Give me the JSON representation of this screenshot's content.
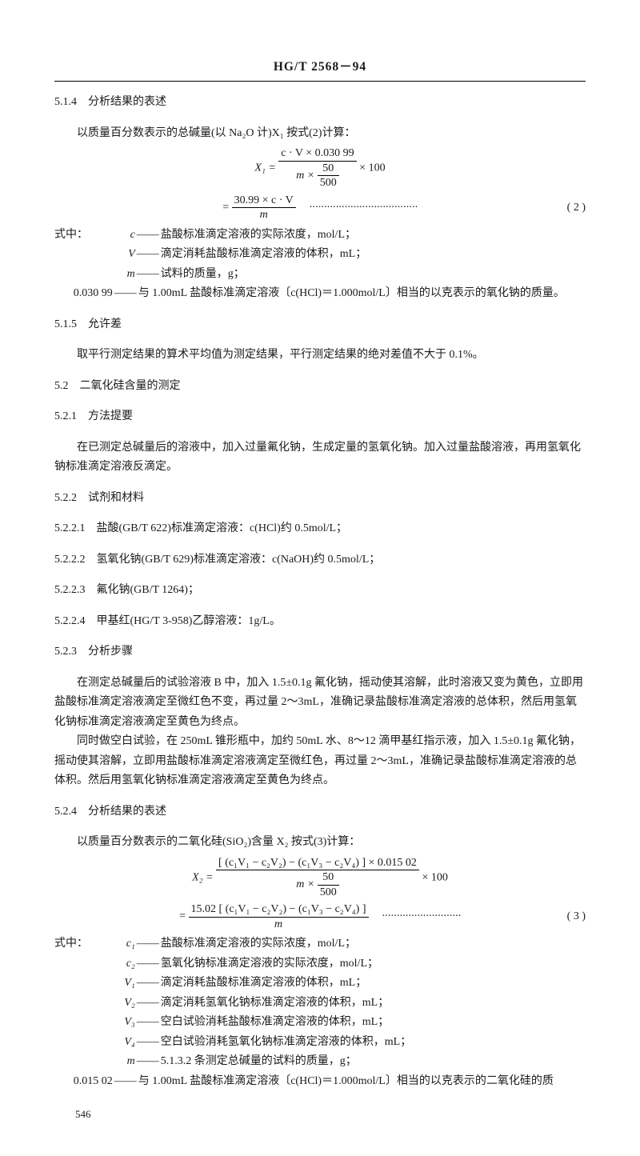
{
  "doc": {
    "standard_id": "HG/T 2568－94",
    "page_number": "546"
  },
  "s514": {
    "head": "5.1.4　分析结果的表述",
    "lead": "以质量百分数表示的总碱量(以 Na₂O 计)X₁ 按式(2)计算：",
    "eq_lhs": "X₁ =",
    "eq_num_top": "c · V × 0.030 99",
    "eq_den_outer_left": "m ×",
    "eq_den_inner_num": "50",
    "eq_den_inner_den": "500",
    "eq_tail": "× 100",
    "eq2_lhs": "=",
    "eq2_num": "30.99 × c · V",
    "eq2_den": "m",
    "eq_label": "( 2 )",
    "where_intro": "式中：",
    "where": [
      {
        "sym": "c",
        "txt": "盐酸标准滴定溶液的实际浓度，mol/L；"
      },
      {
        "sym": "V",
        "txt": "滴定消耗盐酸标准滴定溶液的体积，mL；"
      },
      {
        "sym": "m",
        "txt": "试料的质量，g；"
      }
    ],
    "const_row_sym": "0.030 99",
    "const_row_txt": "与 1.00mL 盐酸标准滴定溶液〔c(HCl)＝1.000mol/L〕相当的以克表示的氧化钠的质量。"
  },
  "s515": {
    "head": "5.1.5　允许差",
    "body": "取平行测定结果的算术平均值为测定结果，平行测定结果的绝对差值不大于 0.1%。"
  },
  "s52": {
    "head": "5.2　二氧化硅含量的测定"
  },
  "s521": {
    "head": "5.2.1　方法提要",
    "body": "在已测定总碱量后的溶液中，加入过量氟化钠，生成定量的氢氧化钠。加入过量盐酸溶液，再用氢氧化钠标准滴定溶液反滴定。"
  },
  "s522": {
    "head": "5.2.2　试剂和材料",
    "items": {
      "a": "5.2.2.1　盐酸(GB/T 622)标准滴定溶液：c(HCl)约 0.5mol/L；",
      "b": "5.2.2.2　氢氧化钠(GB/T 629)标准滴定溶液：c(NaOH)约 0.5mol/L；",
      "c": "5.2.2.3　氟化钠(GB/T 1264)；",
      "d": "5.2.2.4　甲基红(HG/T 3-958)乙醇溶液：1g/L。"
    }
  },
  "s523": {
    "head": "5.2.3　分析步骤",
    "p1": "在测定总碱量后的试验溶液 B 中，加入 1.5±0.1g 氟化钠，摇动使其溶解，此时溶液又变为黄色，立即用盐酸标准滴定溶液滴定至微红色不变，再过量 2～3mL，准确记录盐酸标准滴定溶液的总体积，然后用氢氧化钠标准滴定溶液滴定至黄色为终点。",
    "p2": "同时做空白试验，在 250mL 锥形瓶中，加约 50mL 水、8～12 滴甲基红指示液，加入 1.5±0.1g 氟化钠，摇动使其溶解，立即用盐酸标准滴定溶液滴定至微红色，再过量 2～3mL，准确记录盐酸标准滴定溶液的总体积。然后用氢氧化钠标准滴定溶液滴定至黄色为终点。"
  },
  "s524": {
    "head": "5.2.4　分析结果的表述",
    "lead": "以质量百分数表示的二氧化硅(SiO₂)含量 X₂ 按式(3)计算：",
    "eq_lhs": "X₂ =",
    "eq_num_top": "[ (c₁V₁ − c₂V₂) − (c₁V₃ − c₂V₄) ] × 0.015 02",
    "eq_den_outer_left": "m ×",
    "eq_den_inner_num": "50",
    "eq_den_inner_den": "500",
    "eq_tail": "× 100",
    "eq2_lhs": "=",
    "eq2_num": "15.02 [ (c₁V₁ − c₂V₂) − (c₁V₃ − c₂V₄) ]",
    "eq2_den": "m",
    "eq_label": "( 3 )",
    "where_intro": "式中：",
    "where": [
      {
        "sym": "c₁",
        "txt": "盐酸标准滴定溶液的实际浓度，mol/L；"
      },
      {
        "sym": "c₂",
        "txt": "氢氧化钠标准滴定溶液的实际浓度，mol/L；"
      },
      {
        "sym": "V₁",
        "txt": "滴定消耗盐酸标准滴定溶液的体积，mL；"
      },
      {
        "sym": "V₂",
        "txt": "滴定消耗氢氧化钠标准滴定溶液的体积，mL；"
      },
      {
        "sym": "V₃",
        "txt": "空白试验消耗盐酸标准滴定溶液的体积，mL；"
      },
      {
        "sym": "V₄",
        "txt": "空白试验消耗氢氧化钠标准滴定溶液的体积，mL；"
      },
      {
        "sym": "m",
        "txt": "5.1.3.2 条测定总碱量的试料的质量，g；"
      }
    ],
    "const_row_sym": "0.015 02",
    "const_row_txt": "与 1.00mL 盐酸标准滴定溶液〔c(HCl)＝1.000mol/L〕相当的以克表示的二氧化硅的质"
  }
}
